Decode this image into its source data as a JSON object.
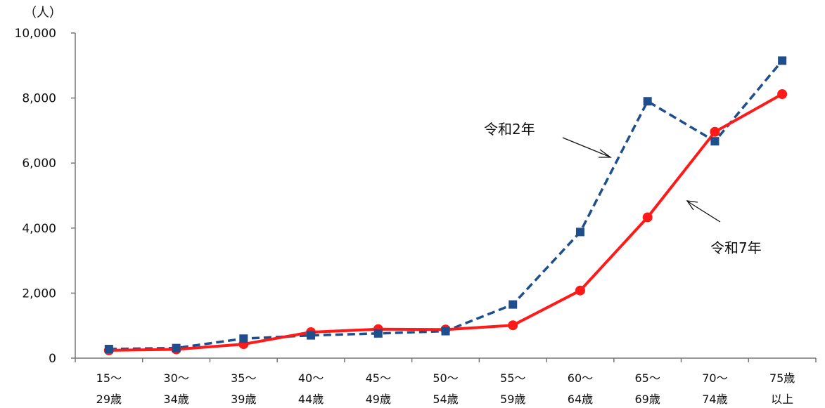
{
  "chart_data": {
    "type": "line",
    "unit_label": "（人）",
    "categories": [
      [
        "15〜",
        "29歳"
      ],
      [
        "30〜",
        "34歳"
      ],
      [
        "35〜",
        "39歳"
      ],
      [
        "40〜",
        "44歳"
      ],
      [
        "45〜",
        "49歳"
      ],
      [
        "50〜",
        "54歳"
      ],
      [
        "55〜",
        "59歳"
      ],
      [
        "60〜",
        "64歳"
      ],
      [
        "65〜",
        "69歳"
      ],
      [
        "70〜",
        "74歳"
      ],
      [
        "75歳",
        "以上"
      ]
    ],
    "yticks": [
      "0",
      "2,000",
      "4,000",
      "6,000",
      "8,000",
      "10,000"
    ],
    "ylim": [
      0,
      10000
    ],
    "grid": false,
    "series": [
      {
        "name": "令和2年",
        "color": "#1f4e8c",
        "style": "dashed",
        "marker": "square",
        "values": [
          280,
          310,
          600,
          700,
          760,
          830,
          1650,
          3880,
          7900,
          6670,
          9150
        ]
      },
      {
        "name": "令和7年",
        "color": "#ff1a1a",
        "style": "solid",
        "marker": "circle",
        "values": [
          240,
          270,
          430,
          800,
          890,
          880,
          1010,
          2080,
          4330,
          6960,
          8120
        ]
      }
    ]
  }
}
